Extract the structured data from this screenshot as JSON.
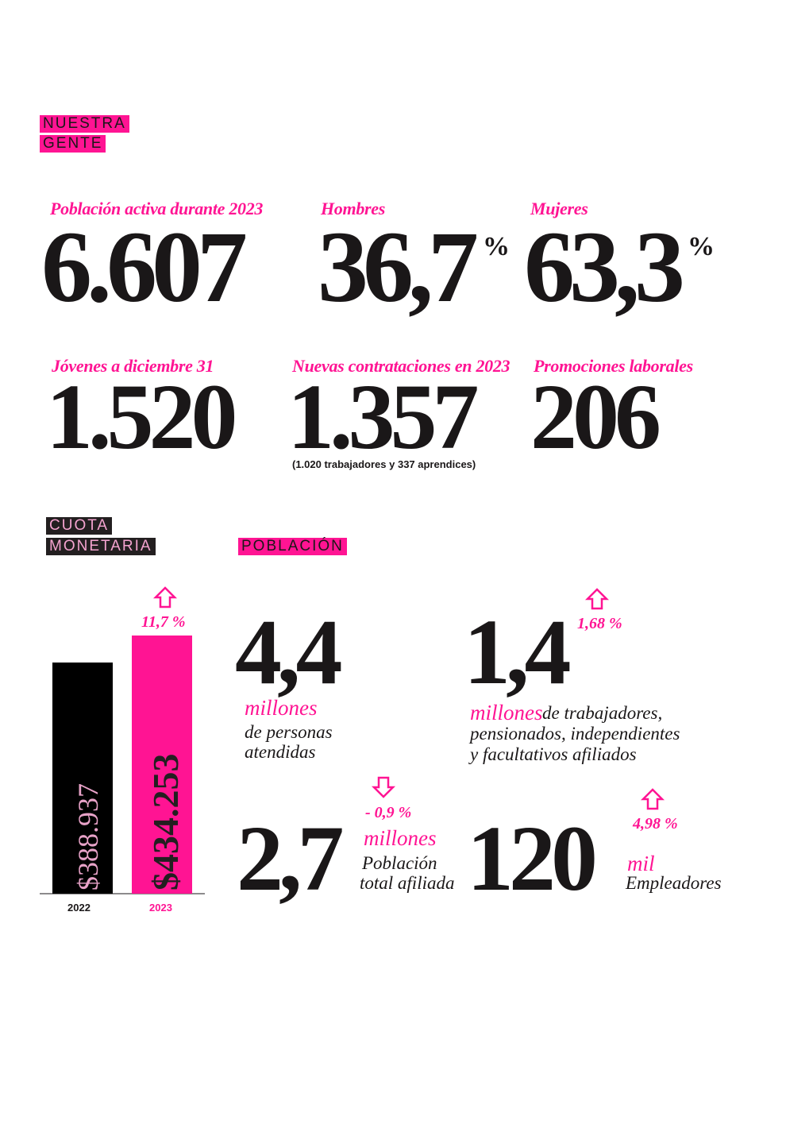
{
  "nuestra_gente": {
    "title": [
      "NUESTRA",
      "GENTE"
    ],
    "stats": [
      {
        "label": "Población activa durante 2023",
        "value": "6.607"
      },
      {
        "label": "Hombres",
        "value": "36,7",
        "unit": "%"
      },
      {
        "label": "Mujeres",
        "value": "63,3",
        "unit": "%"
      },
      {
        "label": "Jóvenes a diciembre 31",
        "value": "1.520"
      },
      {
        "label": "Nuevas contrataciones en 2023",
        "value": "1.357",
        "note": "(1.020 trabajadores y 337 aprendices)"
      },
      {
        "label": "Promociones laborales",
        "value": "206"
      }
    ]
  },
  "cuota_monetaria": {
    "title": [
      "CUOTA",
      "MONETARIA"
    ],
    "categories": [
      "2022",
      "2023"
    ],
    "values": [
      388937,
      434253
    ],
    "value_labels": [
      "$388.937",
      "$434.253"
    ],
    "change": "11,7 %"
  },
  "poblacion": {
    "title": "POBLACIÓN",
    "stats": [
      {
        "value": "4,4",
        "unit": "millones",
        "text": [
          "de personas",
          "atendidas"
        ]
      },
      {
        "value": "1,4",
        "change": "1,68 %",
        "unit": "millones",
        "text": [
          "de trabajadores,",
          "pensionados, independientes",
          "y facultativos afiliados"
        ]
      },
      {
        "value": "2,7",
        "change": "- 0,9 %",
        "unit": "millones",
        "text": [
          "Población",
          "total afiliada"
        ]
      },
      {
        "value": "120",
        "change": "4,98 %",
        "unit": "mil",
        "text": [
          "Empleadores"
        ]
      }
    ]
  }
}
